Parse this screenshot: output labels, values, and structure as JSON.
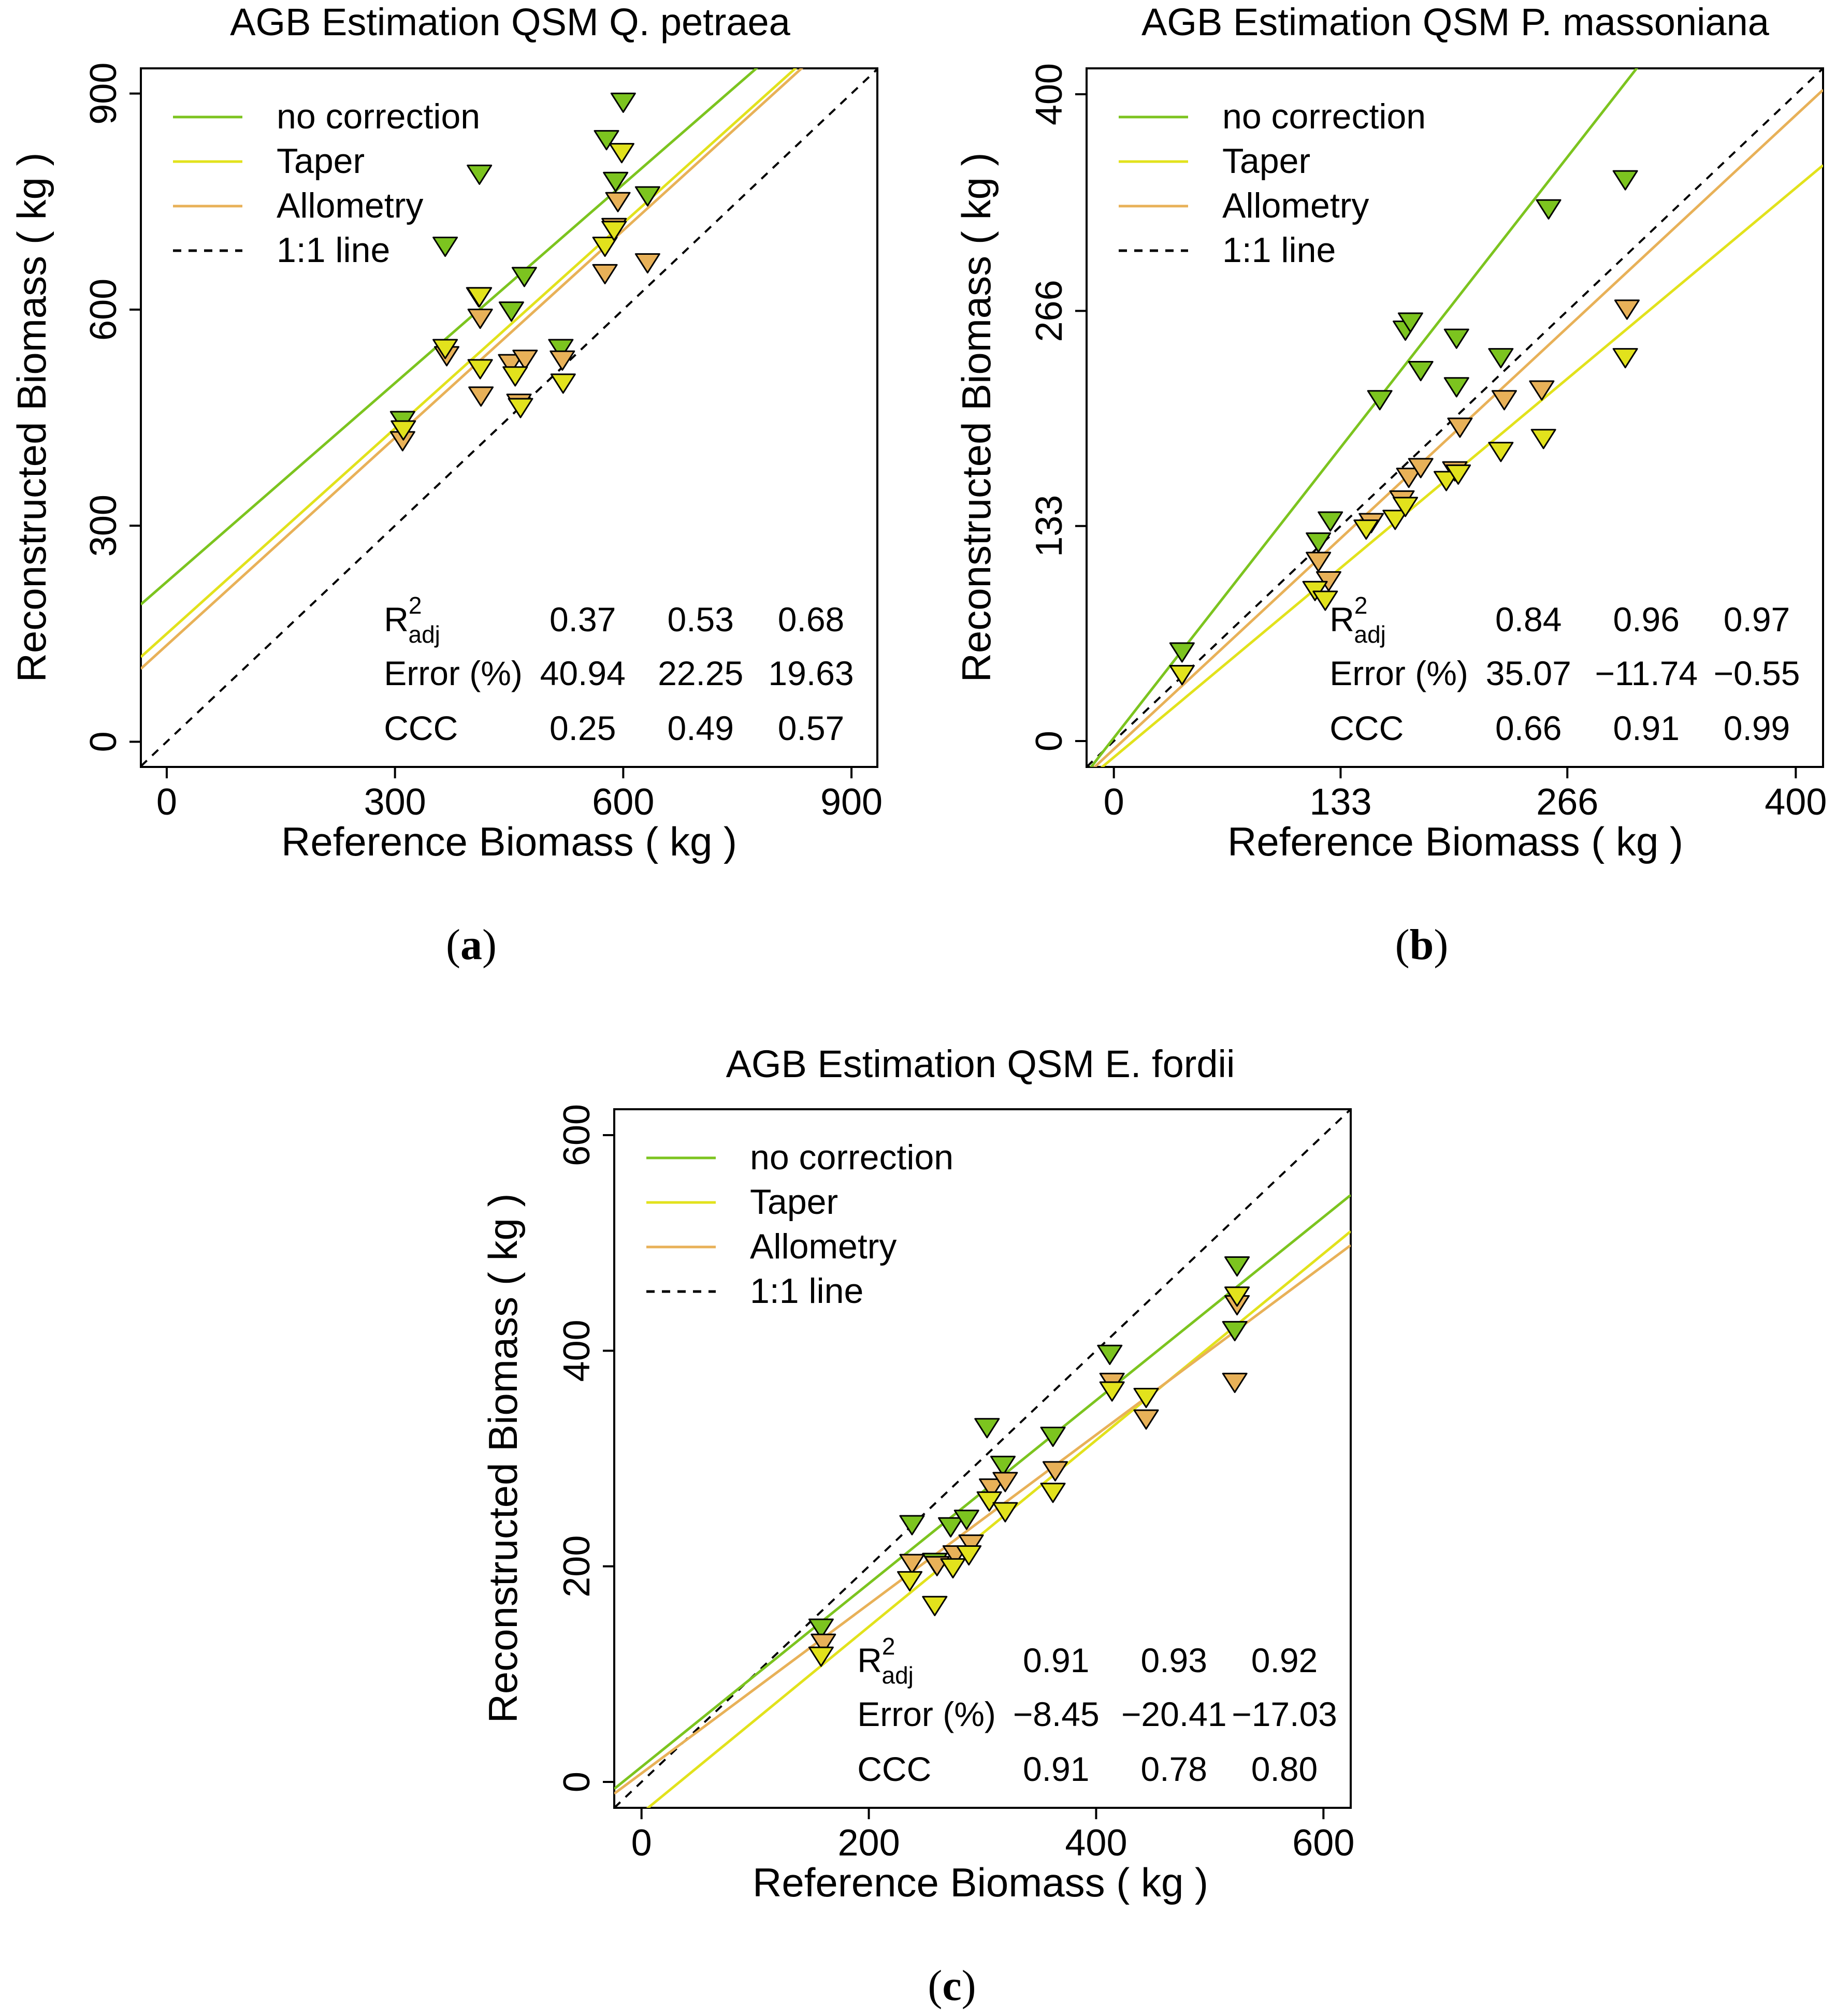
{
  "colors": {
    "no_correction": "#7cc41f",
    "taper": "#e2e21c",
    "allometry": "#e8b158",
    "one_to_one": "#000000"
  },
  "legend_labels": [
    "no correction",
    "Taper",
    "Allometry",
    "1:1 line"
  ],
  "stats_labels": {
    "r2": "R",
    "r2_sup": "2",
    "r2_sub": "adj",
    "error": "Error (%)",
    "ccc": "CCC"
  },
  "chart_data": [
    {
      "id": "a",
      "type": "scatter",
      "title": "AGB Estimation QSM Q. petraea",
      "xlabel": "Reference Biomass ( kg )",
      "ylabel": "Reconstructed Biomass ( kg )",
      "caption": "a",
      "xlim": [
        -34,
        934
      ],
      "ylim": [
        -35,
        935
      ],
      "xticks": [
        "0",
        "300",
        "600",
        "900"
      ],
      "xtick_values": [
        0,
        300,
        600,
        900
      ],
      "yticks": [
        "0",
        "300",
        "600",
        "900"
      ],
      "ytick_values": [
        0,
        300,
        600,
        900
      ],
      "legend_position": "top-left",
      "stats": {
        "r2": [
          "0.37",
          "0.53",
          "0.68"
        ],
        "error": [
          "40.94",
          "22.25",
          "19.63"
        ],
        "ccc": [
          "0.25",
          "0.49",
          "0.57"
        ]
      },
      "series": [
        {
          "name": "no correction",
          "color_key": "no_correction",
          "line": {
            "intercept": 222,
            "slope": 0.92
          },
          "points": [
            [
              310,
              448
            ],
            [
              366,
              690
            ],
            [
              411,
              790
            ],
            [
              410,
              620
            ],
            [
              453,
              600
            ],
            [
              470,
              648
            ],
            [
              518,
              548
            ],
            [
              578,
              838
            ],
            [
              590,
              780
            ],
            [
              600,
              890
            ],
            [
              632,
              760
            ]
          ]
        },
        {
          "name": "Taper",
          "color_key": "taper",
          "line": {
            "intercept": 150,
            "slope": 0.95
          },
          "points": [
            [
              311,
              435
            ],
            [
              366,
              548
            ],
            [
              411,
              620
            ],
            [
              412,
              520
            ],
            [
              458,
              510
            ],
            [
              465,
              466
            ],
            [
              521,
              500
            ],
            [
              576,
              690
            ],
            [
              588,
              712
            ],
            [
              598,
              820
            ]
          ]
        },
        {
          "name": "Allometry",
          "color_key": "allometry",
          "line": {
            "intercept": 134,
            "slope": 0.96
          },
          "points": [
            [
              310,
              420
            ],
            [
              368,
              538
            ],
            [
              412,
              590
            ],
            [
              413,
              482
            ],
            [
              452,
              527
            ],
            [
              471,
              533
            ],
            [
              520,
              532
            ],
            [
              576,
              652
            ],
            [
              588,
              716
            ],
            [
              593,
              752
            ],
            [
              632,
              667
            ],
            [
              463,
              472
            ]
          ]
        }
      ]
    },
    {
      "id": "b",
      "type": "scatter",
      "title": "AGB Estimation QSM P. massoniana",
      "xlabel": "Reference Biomass ( kg )",
      "ylabel": "Reconstructed Biomass ( kg )",
      "caption": "b",
      "xlim": [
        -16,
        416
      ],
      "ylim": [
        -16,
        416
      ],
      "xticks": [
        "0",
        "133",
        "266",
        "400"
      ],
      "xtick_values": [
        0,
        133,
        266,
        400
      ],
      "yticks": [
        "0",
        "133",
        "266",
        "400"
      ],
      "ytick_values": [
        0,
        133,
        266,
        400
      ],
      "legend_position": "top-left",
      "stats": {
        "r2": [
          "0.84",
          "0.96",
          "0.97"
        ],
        "error": [
          "35.07",
          "−11.74",
          "−0.55"
        ],
        "ccc": [
          "0.66",
          "0.91",
          "0.99"
        ]
      },
      "series": [
        {
          "name": "no correction",
          "color_key": "no_correction",
          "line": {
            "intercept": 2,
            "slope": 1.35
          },
          "points": [
            [
              40,
              56
            ],
            [
              120,
              124
            ],
            [
              127,
              137
            ],
            [
              156,
              212
            ],
            [
              171,
              255
            ],
            [
              174,
              260
            ],
            [
              180,
              230
            ],
            [
              201,
              250
            ],
            [
              201,
              220
            ],
            [
              227,
              238
            ],
            [
              255,
              330
            ],
            [
              300,
              348
            ]
          ]
        },
        {
          "name": "Taper",
          "color_key": "taper",
          "line": {
            "intercept": -10,
            "slope": 0.88
          },
          "points": [
            [
              40,
              42
            ],
            [
              118,
              94
            ],
            [
              124,
              88
            ],
            [
              148,
              132
            ],
            [
              165,
              138
            ],
            [
              171,
              146
            ],
            [
              195,
              162
            ],
            [
              202,
              166
            ],
            [
              227,
              180
            ],
            [
              252,
              188
            ],
            [
              300,
              238
            ]
          ]
        },
        {
          "name": "Allometry",
          "color_key": "allometry",
          "line": {
            "intercept": -5,
            "slope": 0.98
          },
          "points": [
            [
              40,
              42
            ],
            [
              120,
              112
            ],
            [
              126,
              100
            ],
            [
              151,
              136
            ],
            [
              169,
              150
            ],
            [
              173,
              164
            ],
            [
              180,
              170
            ],
            [
              200,
              168
            ],
            [
              203,
              195
            ],
            [
              229,
              212
            ],
            [
              251,
              218
            ],
            [
              301,
              268
            ]
          ]
        }
      ]
    },
    {
      "id": "c",
      "type": "scatter",
      "title": "AGB Estimation QSM E. fordii",
      "xlabel": "Reference Biomass ( kg )",
      "ylabel": "Reconstructed Biomass ( kg )",
      "caption": "c",
      "xlim": [
        -24,
        624
      ],
      "ylim": [
        -24,
        624
      ],
      "xticks": [
        "0",
        "200",
        "400",
        "600"
      ],
      "xtick_values": [
        0,
        200,
        400,
        600
      ],
      "yticks": [
        "0",
        "200",
        "400",
        "600"
      ],
      "ytick_values": [
        0,
        200,
        400,
        600
      ],
      "legend_position": "top-left",
      "stats": {
        "r2": [
          "0.91",
          "0.93",
          "0.92"
        ],
        "error": [
          "−8.45",
          "−20.41",
          "−17.03"
        ],
        "ccc": [
          "0.91",
          "0.78",
          "0.80"
        ]
      },
      "series": [
        {
          "name": "no correction",
          "color_key": "no_correction",
          "line": {
            "intercept": 14,
            "slope": 0.85
          },
          "points": [
            [
              158,
              144
            ],
            [
              238,
              240
            ],
            [
              258,
              205
            ],
            [
              272,
              238
            ],
            [
              286,
              245
            ],
            [
              304,
              330
            ],
            [
              318,
              295
            ],
            [
              362,
              322
            ],
            [
              412,
              398
            ],
            [
              524,
              480
            ],
            [
              522,
              420
            ]
          ]
        },
        {
          "name": "Taper",
          "color_key": "taper",
          "line": {
            "intercept": -29,
            "slope": 0.865
          },
          "points": [
            [
              158,
              118
            ],
            [
              236,
              188
            ],
            [
              258,
              165
            ],
            [
              274,
              200
            ],
            [
              288,
              212
            ],
            [
              306,
              262
            ],
            [
              320,
              252
            ],
            [
              362,
              270
            ],
            [
              414,
              364
            ],
            [
              444,
              358
            ],
            [
              524,
              452
            ]
          ]
        },
        {
          "name": "Allometry",
          "color_key": "allometry",
          "line": {
            "intercept": 8,
            "slope": 0.785
          },
          "points": [
            [
              160,
              130
            ],
            [
              238,
              204
            ],
            [
              260,
              202
            ],
            [
              276,
              212
            ],
            [
              290,
              222
            ],
            [
              308,
              274
            ],
            [
              320,
              280
            ],
            [
              364,
              290
            ],
            [
              414,
              372
            ],
            [
              444,
              338
            ],
            [
              524,
              444
            ],
            [
              522,
              372
            ]
          ]
        }
      ]
    }
  ]
}
